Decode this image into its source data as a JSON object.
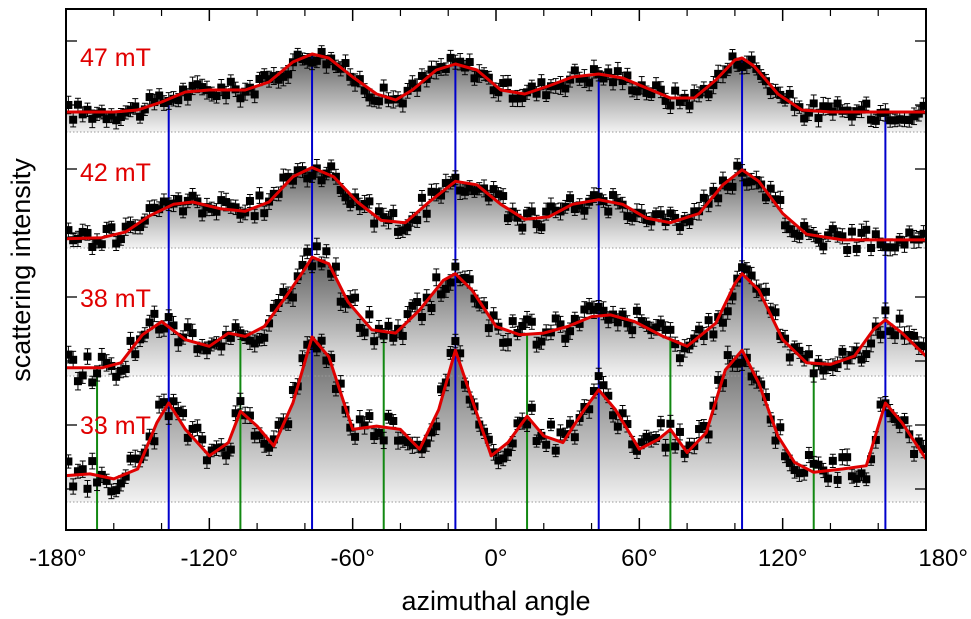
{
  "chart_data": {
    "type": "scatter",
    "xlabel": "azimuthal angle",
    "ylabel": "scattering intensity",
    "xlim": [
      -180,
      180
    ],
    "x_ticks": [
      {
        "value": -180,
        "label": "-180°"
      },
      {
        "value": -120,
        "label": "-120°"
      },
      {
        "value": -60,
        "label": "-60°"
      },
      {
        "value": 0,
        "label": "0°"
      },
      {
        "value": 60,
        "label": "60°"
      },
      {
        "value": 120,
        "label": "120°"
      },
      {
        "value": 180,
        "label": "180°"
      }
    ],
    "vertical_lines": {
      "blue": [
        -137,
        -77,
        -17,
        43,
        103,
        163
      ],
      "green": [
        -167,
        -107,
        -47,
        13,
        73,
        133
      ],
      "colors": {
        "blue": "#0000cc",
        "green": "#118811"
      }
    },
    "colors": {
      "fit": "#e00000",
      "data": "#000000",
      "label": "#e00000"
    },
    "series": [
      {
        "name": "47 mT",
        "fit": [
          [
            -180,
            0.2
          ],
          [
            -160,
            0.2
          ],
          [
            -150,
            0.22
          ],
          [
            -140,
            0.3
          ],
          [
            -130,
            0.4
          ],
          [
            -120,
            0.42
          ],
          [
            -105,
            0.42
          ],
          [
            -95,
            0.5
          ],
          [
            -85,
            0.7
          ],
          [
            -77,
            0.78
          ],
          [
            -70,
            0.74
          ],
          [
            -60,
            0.55
          ],
          [
            -50,
            0.38
          ],
          [
            -42,
            0.32
          ],
          [
            -35,
            0.42
          ],
          [
            -25,
            0.62
          ],
          [
            -17,
            0.68
          ],
          [
            -8,
            0.62
          ],
          [
            2,
            0.42
          ],
          [
            12,
            0.38
          ],
          [
            22,
            0.46
          ],
          [
            32,
            0.55
          ],
          [
            43,
            0.58
          ],
          [
            53,
            0.54
          ],
          [
            63,
            0.44
          ],
          [
            73,
            0.34
          ],
          [
            83,
            0.34
          ],
          [
            92,
            0.52
          ],
          [
            100,
            0.72
          ],
          [
            103,
            0.74
          ],
          [
            108,
            0.66
          ],
          [
            118,
            0.38
          ],
          [
            128,
            0.22
          ],
          [
            140,
            0.2
          ],
          [
            160,
            0.2
          ],
          [
            180,
            0.2
          ]
        ]
      },
      {
        "name": "42 mT",
        "fit": [
          [
            -180,
            0.08
          ],
          [
            -165,
            0.09
          ],
          [
            -155,
            0.14
          ],
          [
            -145,
            0.28
          ],
          [
            -135,
            0.38
          ],
          [
            -127,
            0.4
          ],
          [
            -115,
            0.34
          ],
          [
            -105,
            0.32
          ],
          [
            -95,
            0.4
          ],
          [
            -85,
            0.62
          ],
          [
            -77,
            0.7
          ],
          [
            -68,
            0.62
          ],
          [
            -58,
            0.4
          ],
          [
            -48,
            0.24
          ],
          [
            -38,
            0.22
          ],
          [
            -28,
            0.4
          ],
          [
            -17,
            0.58
          ],
          [
            -8,
            0.55
          ],
          [
            2,
            0.38
          ],
          [
            12,
            0.25
          ],
          [
            22,
            0.27
          ],
          [
            32,
            0.38
          ],
          [
            43,
            0.42
          ],
          [
            53,
            0.38
          ],
          [
            63,
            0.26
          ],
          [
            73,
            0.22
          ],
          [
            85,
            0.3
          ],
          [
            95,
            0.55
          ],
          [
            103,
            0.68
          ],
          [
            110,
            0.58
          ],
          [
            120,
            0.3
          ],
          [
            130,
            0.12
          ],
          [
            145,
            0.07
          ],
          [
            160,
            0.07
          ],
          [
            180,
            0.07
          ]
        ]
      },
      {
        "name": "38 mT",
        "fit": [
          [
            -180,
            0.05
          ],
          [
            -165,
            0.05
          ],
          [
            -157,
            0.08
          ],
          [
            -148,
            0.25
          ],
          [
            -140,
            0.33
          ],
          [
            -130,
            0.22
          ],
          [
            -120,
            0.18
          ],
          [
            -112,
            0.26
          ],
          [
            -105,
            0.24
          ],
          [
            -97,
            0.3
          ],
          [
            -88,
            0.48
          ],
          [
            -80,
            0.65
          ],
          [
            -77,
            0.72
          ],
          [
            -70,
            0.68
          ],
          [
            -62,
            0.45
          ],
          [
            -52,
            0.28
          ],
          [
            -42,
            0.26
          ],
          [
            -32,
            0.4
          ],
          [
            -22,
            0.58
          ],
          [
            -17,
            0.62
          ],
          [
            -10,
            0.52
          ],
          [
            0,
            0.3
          ],
          [
            10,
            0.25
          ],
          [
            20,
            0.26
          ],
          [
            30,
            0.3
          ],
          [
            40,
            0.36
          ],
          [
            48,
            0.37
          ],
          [
            58,
            0.33
          ],
          [
            70,
            0.24
          ],
          [
            80,
            0.18
          ],
          [
            92,
            0.32
          ],
          [
            100,
            0.56
          ],
          [
            103,
            0.62
          ],
          [
            110,
            0.52
          ],
          [
            120,
            0.22
          ],
          [
            130,
            0.08
          ],
          [
            140,
            0.07
          ],
          [
            150,
            0.12
          ],
          [
            158,
            0.28
          ],
          [
            163,
            0.34
          ],
          [
            170,
            0.26
          ],
          [
            180,
            0.12
          ]
        ]
      },
      {
        "name": "33 mT",
        "fit": [
          [
            -180,
            0.16
          ],
          [
            -170,
            0.17
          ],
          [
            -160,
            0.14
          ],
          [
            -150,
            0.2
          ],
          [
            -142,
            0.48
          ],
          [
            -137,
            0.6
          ],
          [
            -130,
            0.44
          ],
          [
            -120,
            0.28
          ],
          [
            -112,
            0.36
          ],
          [
            -107,
            0.55
          ],
          [
            -100,
            0.46
          ],
          [
            -93,
            0.34
          ],
          [
            -85,
            0.6
          ],
          [
            -77,
            1.0
          ],
          [
            -70,
            0.88
          ],
          [
            -60,
            0.44
          ],
          [
            -50,
            0.46
          ],
          [
            -40,
            0.44
          ],
          [
            -32,
            0.32
          ],
          [
            -24,
            0.56
          ],
          [
            -17,
            0.92
          ],
          [
            -10,
            0.62
          ],
          [
            -2,
            0.28
          ],
          [
            5,
            0.36
          ],
          [
            13,
            0.52
          ],
          [
            20,
            0.4
          ],
          [
            28,
            0.36
          ],
          [
            36,
            0.54
          ],
          [
            43,
            0.68
          ],
          [
            50,
            0.56
          ],
          [
            60,
            0.32
          ],
          [
            68,
            0.38
          ],
          [
            73,
            0.44
          ],
          [
            80,
            0.3
          ],
          [
            88,
            0.42
          ],
          [
            96,
            0.8
          ],
          [
            103,
            0.92
          ],
          [
            110,
            0.72
          ],
          [
            118,
            0.4
          ],
          [
            125,
            0.24
          ],
          [
            133,
            0.18
          ],
          [
            145,
            0.2
          ],
          [
            155,
            0.22
          ],
          [
            163,
            0.6
          ],
          [
            170,
            0.48
          ],
          [
            180,
            0.26
          ]
        ]
      }
    ]
  }
}
